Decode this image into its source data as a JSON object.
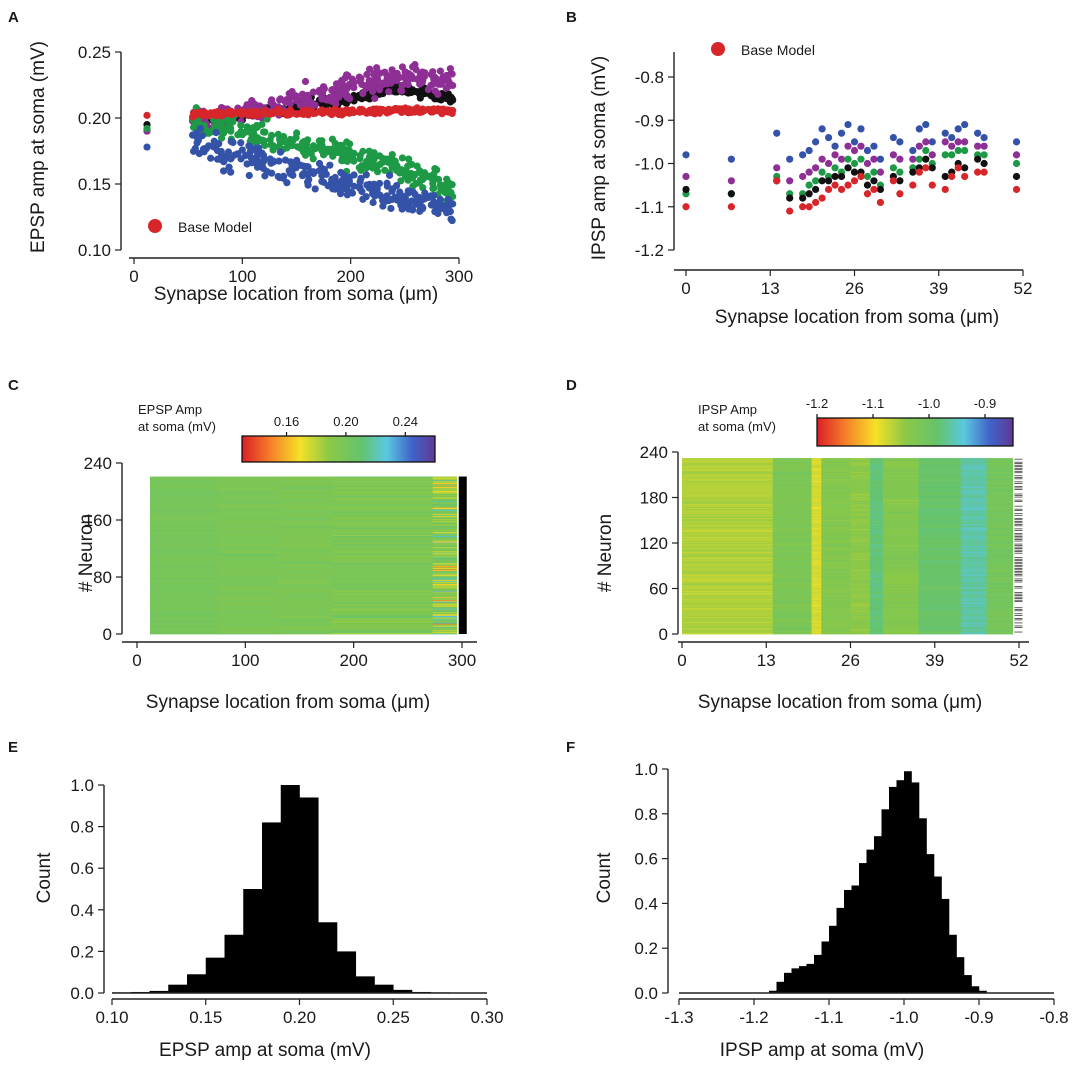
{
  "colors": {
    "black": "#111111",
    "purple": "#8e2f95",
    "green": "#1e9a47",
    "red": "#d7262a",
    "blue": "#3452a8"
  },
  "chart_data": [
    {
      "panel": "A",
      "type": "scatter",
      "xlabel": "Synapse location from soma (μm)",
      "ylabel": "EPSP amp at soma (mV)",
      "xlim": [
        0,
        300
      ],
      "ylim": [
        0.1,
        0.25
      ],
      "xticks": [
        "0",
        "100",
        "200",
        "300"
      ],
      "yticks": [
        "0.10",
        "0.15",
        "0.20",
        "0.25"
      ],
      "legend": {
        "label": "Base Model",
        "color": "red",
        "placement": "bottom-left"
      },
      "series": [
        {
          "name": "black",
          "color": "black",
          "trend": [
            [
              12,
              0.195
            ],
            [
              55,
              0.198
            ],
            [
              150,
              0.208
            ],
            [
              250,
              0.222
            ],
            [
              295,
              0.215
            ]
          ],
          "spread": 0.004
        },
        {
          "name": "purple",
          "color": "purple",
          "trend": [
            [
              12,
              0.19
            ],
            [
              55,
              0.198
            ],
            [
              150,
              0.212
            ],
            [
              250,
              0.232
            ],
            [
              295,
              0.228
            ]
          ],
          "spread": 0.009
        },
        {
          "name": "green",
          "color": "green",
          "trend": [
            [
              12,
              0.192
            ],
            [
              55,
              0.196
            ],
            [
              150,
              0.182
            ],
            [
              250,
              0.16
            ],
            [
              295,
              0.148
            ]
          ],
          "spread": 0.01
        },
        {
          "name": "blue",
          "color": "blue",
          "trend": [
            [
              12,
              0.178
            ],
            [
              55,
              0.18
            ],
            [
              150,
              0.16
            ],
            [
              250,
              0.138
            ],
            [
              295,
              0.13
            ]
          ],
          "spread": 0.011
        },
        {
          "name": "Base Model",
          "color": "red",
          "trend": [
            [
              12,
              0.202
            ],
            [
              55,
              0.203
            ],
            [
              150,
              0.204
            ],
            [
              250,
              0.206
            ],
            [
              295,
              0.205
            ]
          ],
          "spread": 0.002
        }
      ]
    },
    {
      "panel": "B",
      "type": "scatter",
      "xlabel": "Synapse location from soma (μm)",
      "ylabel": "IPSP amp at soma (mV)",
      "xlim": [
        0,
        52
      ],
      "ylim": [
        -1.2,
        -0.8
      ],
      "xticks": [
        "0",
        "13",
        "26",
        "39",
        "52"
      ],
      "yticks": [
        "-0.8",
        "-0.9",
        "-1.0",
        "-1.1",
        "-1.2"
      ],
      "legend": {
        "label": "Base Model",
        "color": "red",
        "placement": "top-left"
      },
      "x_positions": [
        0,
        7,
        14,
        16,
        18,
        19,
        20,
        21,
        22,
        23,
        24,
        25,
        26,
        27,
        28,
        29,
        30,
        32,
        33,
        35,
        36,
        37,
        38,
        40,
        41,
        42,
        43,
        45,
        46,
        51
      ],
      "series": [
        {
          "name": "blue",
          "color": "blue",
          "values": [
            -0.98,
            -0.99,
            -0.93,
            -0.99,
            -0.98,
            -0.97,
            -0.95,
            -0.92,
            -0.94,
            -0.96,
            -0.93,
            -0.91,
            -0.95,
            -0.92,
            -0.97,
            -0.96,
            -0.99,
            -0.94,
            -0.95,
            -0.97,
            -0.92,
            -0.91,
            -0.95,
            -0.93,
            -0.94,
            -0.92,
            -0.91,
            -0.93,
            -0.94,
            -0.95
          ]
        },
        {
          "name": "purple",
          "color": "purple",
          "values": [
            -1.03,
            -1.04,
            -1.01,
            -1.04,
            -1.03,
            -1.02,
            -1.01,
            -0.99,
            -1.0,
            -0.98,
            -0.99,
            -0.96,
            -0.97,
            -0.96,
            -1.0,
            -0.99,
            -1.02,
            -0.98,
            -0.99,
            -0.99,
            -0.96,
            -0.95,
            -0.98,
            -0.95,
            -0.96,
            -0.95,
            -0.95,
            -0.96,
            -0.96,
            -0.98
          ]
        },
        {
          "name": "green",
          "color": "green",
          "values": [
            -1.07,
            -1.07,
            -1.03,
            -1.07,
            -1.07,
            -1.05,
            -1.04,
            -1.02,
            -1.03,
            -1.01,
            -1.02,
            -0.99,
            -1.0,
            -0.99,
            -1.03,
            -1.02,
            -1.05,
            -1.01,
            -1.02,
            -1.01,
            -0.99,
            -0.97,
            -1.0,
            -0.98,
            -0.98,
            -0.97,
            -0.97,
            -0.98,
            -0.98,
            -1.0
          ]
        },
        {
          "name": "black",
          "color": "black",
          "values": [
            -1.06,
            -1.07,
            -1.04,
            -1.08,
            -1.08,
            -1.07,
            -1.06,
            -1.04,
            -1.04,
            -1.03,
            -1.03,
            -1.01,
            -1.02,
            -1.02,
            -1.05,
            -1.04,
            -1.06,
            -1.03,
            -1.04,
            -1.02,
            -1.01,
            -0.99,
            -1.01,
            -1.03,
            -1.02,
            -1.0,
            -1.01,
            -0.99,
            -1.0,
            -1.03
          ]
        },
        {
          "name": "Base Model",
          "color": "red",
          "values": [
            -1.1,
            -1.1,
            -1.04,
            -1.11,
            -1.1,
            -1.1,
            -1.09,
            -1.08,
            -1.06,
            -1.05,
            -1.06,
            -1.05,
            -1.04,
            -1.03,
            -1.07,
            -1.06,
            -1.09,
            -1.04,
            -1.07,
            -1.05,
            -1.02,
            -1.01,
            -1.05,
            -1.06,
            -1.03,
            -1.01,
            -1.03,
            -1.02,
            -1.02,
            -1.06
          ]
        }
      ]
    },
    {
      "panel": "C",
      "type": "heatmap",
      "xlabel": "Synapse location from soma (μm)",
      "ylabel": "# Neuron",
      "xlim": [
        0,
        300
      ],
      "ylim": [
        0,
        240
      ],
      "xticks": [
        "0",
        "100",
        "200",
        "300"
      ],
      "yticks": [
        "0",
        "80",
        "160",
        "240"
      ],
      "colorbar": {
        "title": "EPSP Amp",
        "title2": "at soma (mV)",
        "ticks": [
          "0.16",
          "0.20",
          "0.24"
        ],
        "range": [
          0.13,
          0.26
        ]
      },
      "segments": [
        {
          "x0": 12,
          "x1": 75,
          "mean": 0.2,
          "spread": 0.004
        },
        {
          "x0": 75,
          "x1": 130,
          "mean": 0.198,
          "spread": 0.005
        },
        {
          "x0": 130,
          "x1": 180,
          "mean": 0.197,
          "spread": 0.006
        },
        {
          "x0": 180,
          "x1": 273,
          "mean": 0.196,
          "spread": 0.011
        },
        {
          "x0": 273,
          "x1": 295,
          "mean": 0.19,
          "spread": 0.035
        }
      ]
    },
    {
      "panel": "D",
      "type": "heatmap",
      "xlabel": "Synapse location from soma (μm)",
      "ylabel": "# Neuron",
      "xlim": [
        0,
        52
      ],
      "ylim": [
        0,
        240
      ],
      "xticks": [
        "0",
        "13",
        "26",
        "39",
        "52"
      ],
      "yticks": [
        "0",
        "60",
        "120",
        "180",
        "240"
      ],
      "colorbar": {
        "title": "IPSP Amp",
        "title2": "at soma (mV)",
        "ticks": [
          "-1.2",
          "-1.1",
          "-1.0",
          "-0.9"
        ],
        "range": [
          -1.2,
          -0.85
        ]
      },
      "segments": [
        {
          "x0": 0,
          "x1": 14,
          "mean": -1.06,
          "spread": 0.015
        },
        {
          "x0": 14,
          "x1": 20,
          "mean": -1.02,
          "spread": 0.015
        },
        {
          "x0": 20,
          "x1": 21.5,
          "mean": -1.08,
          "spread": 0.012
        },
        {
          "x0": 21.5,
          "x1": 26,
          "mean": -1.03,
          "spread": 0.015
        },
        {
          "x0": 26,
          "x1": 29,
          "mean": -1.04,
          "spread": 0.015
        },
        {
          "x0": 29,
          "x1": 31,
          "mean": -0.98,
          "spread": 0.015
        },
        {
          "x0": 31,
          "x1": 36.5,
          "mean": -1.03,
          "spread": 0.015
        },
        {
          "x0": 36.5,
          "x1": 43,
          "mean": -0.99,
          "spread": 0.015
        },
        {
          "x0": 43,
          "x1": 47,
          "mean": -0.96,
          "spread": 0.015
        },
        {
          "x0": 47,
          "x1": 51,
          "mean": -1.01,
          "spread": 0.015
        }
      ]
    },
    {
      "panel": "E",
      "type": "bar",
      "xlabel": "EPSP amp at soma (mV)",
      "ylabel": "Count",
      "xlim": [
        0.1,
        0.3
      ],
      "ylim": [
        0,
        1.05
      ],
      "xticks": [
        "0.10",
        "0.15",
        "0.20",
        "0.25",
        "0.30"
      ],
      "yticks": [
        "0.0",
        "0.2",
        "0.4",
        "0.6",
        "0.8",
        "1.0"
      ],
      "bin_width": 0.01,
      "bin_starts": [
        0.1,
        0.11,
        0.12,
        0.13,
        0.14,
        0.15,
        0.16,
        0.17,
        0.18,
        0.19,
        0.2,
        0.21,
        0.22,
        0.23,
        0.24,
        0.25,
        0.26,
        0.27
      ],
      "values": [
        0.003,
        0.005,
        0.01,
        0.04,
        0.09,
        0.17,
        0.28,
        0.5,
        0.82,
        1.0,
        0.94,
        0.34,
        0.2,
        0.08,
        0.04,
        0.015,
        0.005,
        0.003
      ]
    },
    {
      "panel": "F",
      "type": "bar",
      "xlabel": "IPSP amp at soma (mV)",
      "ylabel": "Count",
      "xlim": [
        -1.3,
        -0.8
      ],
      "ylim": [
        0,
        1.05
      ],
      "xticks": [
        "-1.3",
        "-1.2",
        "-1.1",
        "-1.0",
        "-0.9",
        "-0.8"
      ],
      "yticks": [
        "0.0",
        "0.2",
        "0.4",
        "0.6",
        "0.8",
        "1.0"
      ],
      "bin_width": 0.01,
      "bin_starts": [
        -1.18,
        -1.17,
        -1.16,
        -1.15,
        -1.14,
        -1.13,
        -1.12,
        -1.11,
        -1.1,
        -1.09,
        -1.08,
        -1.07,
        -1.06,
        -1.05,
        -1.04,
        -1.03,
        -1.02,
        -1.01,
        -1.0,
        -0.99,
        -0.98,
        -0.97,
        -0.96,
        -0.95,
        -0.94,
        -0.93,
        -0.92,
        -0.91,
        -0.9
      ],
      "values": [
        0.01,
        0.05,
        0.09,
        0.11,
        0.12,
        0.13,
        0.17,
        0.23,
        0.3,
        0.38,
        0.46,
        0.48,
        0.58,
        0.64,
        0.7,
        0.82,
        0.92,
        0.95,
        0.99,
        0.94,
        0.78,
        0.62,
        0.52,
        0.42,
        0.26,
        0.16,
        0.08,
        0.03,
        0.01
      ]
    }
  ]
}
